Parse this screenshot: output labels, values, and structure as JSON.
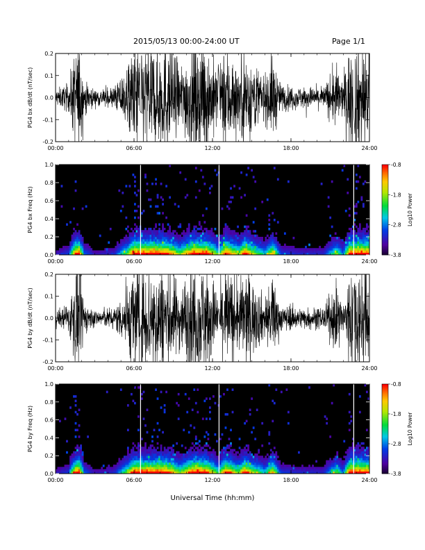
{
  "header": {
    "date_range": "2015/05/13  00:00-24:00 UT",
    "page": "Page 1/1"
  },
  "footer": {
    "xlabel": "Universal Time (hh:mm)"
  },
  "colors": {
    "waveform": "#000000",
    "background": "#ffffff",
    "spectrogram_bg": "#000000"
  },
  "chart_data": [
    {
      "type": "line",
      "ylabel": "PG4 bx dB/dt (nT/sec)",
      "x_ticks": [
        "00:00",
        "06:00",
        "12:00",
        "18:00",
        "24:00"
      ],
      "x_range_hours": [
        0,
        24
      ],
      "y_ticks": [
        "0.2",
        "0.1",
        "0.0",
        "-0.1",
        "-0.2"
      ],
      "ylim": [
        -0.2,
        0.2
      ],
      "activity_envelope_hours": [
        [
          0.0,
          0.03
        ],
        [
          1.0,
          0.05
        ],
        [
          1.6,
          0.2
        ],
        [
          1.8,
          0.2
        ],
        [
          2.2,
          0.06
        ],
        [
          3.0,
          0.03
        ],
        [
          4.5,
          0.04
        ],
        [
          5.5,
          0.12
        ],
        [
          6.0,
          0.2
        ],
        [
          7.0,
          0.2
        ],
        [
          8.5,
          0.2
        ],
        [
          9.5,
          0.12
        ],
        [
          10.5,
          0.2
        ],
        [
          11.5,
          0.2
        ],
        [
          12.5,
          0.1
        ],
        [
          13.0,
          0.2
        ],
        [
          14.0,
          0.12
        ],
        [
          14.5,
          0.2
        ],
        [
          15.0,
          0.14
        ],
        [
          16.0,
          0.08
        ],
        [
          16.6,
          0.16
        ],
        [
          17.2,
          0.05
        ],
        [
          18.5,
          0.04
        ],
        [
          20.5,
          0.04
        ],
        [
          21.5,
          0.12
        ],
        [
          22.0,
          0.06
        ],
        [
          22.5,
          0.2
        ],
        [
          23.5,
          0.2
        ],
        [
          24.0,
          0.2
        ]
      ],
      "data_gaps_hours": [
        6.5,
        12.5,
        22.8
      ]
    },
    {
      "type": "heatmap",
      "ylabel": "PG4 bx Freq (Hz)",
      "x_ticks": [
        "00:00",
        "06:00",
        "12:00",
        "18:00",
        "24:00"
      ],
      "x_range_hours": [
        0,
        24
      ],
      "y_ticks": [
        "1.0",
        "0.8",
        "0.6",
        "0.4",
        "0.2",
        "0.0"
      ],
      "ylim": [
        0.0,
        1.0
      ],
      "colorbar": {
        "label": "Log10 Power",
        "ticks": [
          "-0.8",
          "-1.8",
          "-2.8",
          "-3.8"
        ],
        "range": [
          -3.8,
          -0.8
        ]
      }
    },
    {
      "type": "line",
      "ylabel": "PG4 by dB/dt (nT/sec)",
      "x_ticks": [
        "00:00",
        "06:00",
        "12:00",
        "18:00",
        "24:00"
      ],
      "x_range_hours": [
        0,
        24
      ],
      "y_ticks": [
        "0.2",
        "0.1",
        "0.0",
        "-0.1",
        "-0.2"
      ],
      "ylim": [
        -0.2,
        0.2
      ],
      "activity_envelope_hours": [
        [
          0.0,
          0.03
        ],
        [
          1.0,
          0.05
        ],
        [
          1.6,
          0.2
        ],
        [
          1.8,
          0.2
        ],
        [
          2.2,
          0.06
        ],
        [
          3.0,
          0.03
        ],
        [
          4.5,
          0.04
        ],
        [
          5.5,
          0.12
        ],
        [
          6.0,
          0.2
        ],
        [
          7.0,
          0.2
        ],
        [
          8.5,
          0.2
        ],
        [
          9.5,
          0.12
        ],
        [
          10.5,
          0.2
        ],
        [
          11.5,
          0.2
        ],
        [
          12.5,
          0.1
        ],
        [
          13.0,
          0.2
        ],
        [
          14.0,
          0.12
        ],
        [
          14.5,
          0.2
        ],
        [
          15.0,
          0.14
        ],
        [
          16.0,
          0.08
        ],
        [
          16.6,
          0.16
        ],
        [
          17.2,
          0.05
        ],
        [
          18.5,
          0.04
        ],
        [
          20.5,
          0.04
        ],
        [
          21.5,
          0.12
        ],
        [
          22.0,
          0.06
        ],
        [
          22.5,
          0.2
        ],
        [
          23.5,
          0.2
        ],
        [
          24.0,
          0.2
        ]
      ],
      "data_gaps_hours": [
        6.5,
        12.5,
        22.8
      ]
    },
    {
      "type": "heatmap",
      "ylabel": "PG4 by Freq (Hz)",
      "x_ticks": [
        "00:00",
        "06:00",
        "12:00",
        "18:00",
        "24:00"
      ],
      "x_range_hours": [
        0,
        24
      ],
      "y_ticks": [
        "1.0",
        "0.8",
        "0.6",
        "0.4",
        "0.2",
        "0.0"
      ],
      "ylim": [
        0.0,
        1.0
      ],
      "colorbar": {
        "label": "Log10 Power",
        "ticks": [
          "-0.8",
          "-1.8",
          "-2.8",
          "-3.8"
        ],
        "range": [
          -3.8,
          -0.8
        ]
      }
    }
  ]
}
